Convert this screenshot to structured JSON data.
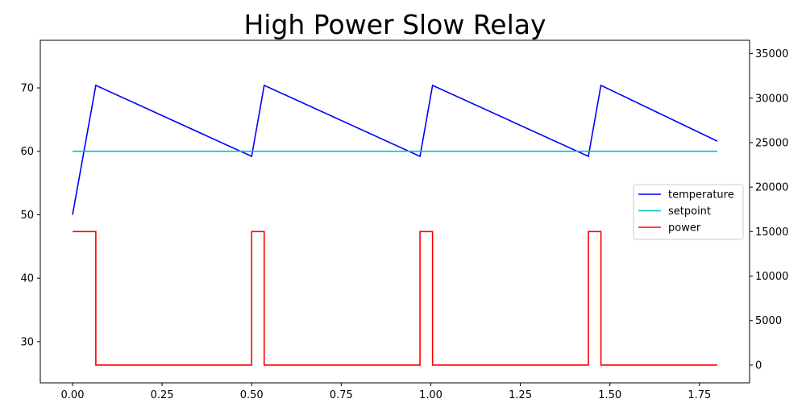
{
  "chart_data": {
    "type": "line",
    "title": "High Power Slow Relay",
    "xlabel": "",
    "ylabel": "",
    "ylabel_right": "",
    "xlim": [
      -0.09,
      1.89
    ],
    "ylim_left": [
      23.5,
      77.5
    ],
    "ylim_right": [
      -2000,
      36500
    ],
    "x_ticks": [
      0.0,
      0.25,
      0.5,
      0.75,
      1.0,
      1.25,
      1.5,
      1.75
    ],
    "x_tick_labels": [
      "0.00",
      "0.25",
      "0.50",
      "0.75",
      "1.00",
      "1.25",
      "1.50",
      "1.75"
    ],
    "y_left_ticks": [
      30,
      40,
      50,
      60,
      70
    ],
    "y_left_tick_labels": [
      "30",
      "40",
      "50",
      "60",
      "70"
    ],
    "y_right_ticks": [
      0,
      5000,
      10000,
      15000,
      20000,
      25000,
      30000,
      35000
    ],
    "y_right_tick_labels": [
      "0",
      "5000",
      "10000",
      "15000",
      "20000",
      "25000",
      "30000",
      "35000"
    ],
    "grid": false,
    "legend": "center-right",
    "series": [
      {
        "name": "temperature",
        "axis": "left",
        "color": "#0000ff",
        "x": [
          0.0,
          0.065,
          0.5,
          0.535,
          0.97,
          1.005,
          1.44,
          1.475,
          1.8
        ],
        "y": [
          50.0,
          70.4,
          59.2,
          70.4,
          59.2,
          70.4,
          59.2,
          70.4,
          61.6
        ]
      },
      {
        "name": "setpoint",
        "axis": "left",
        "color": "#00bfbf",
        "x": [
          0.0,
          1.8
        ],
        "y": [
          60.0,
          60.0
        ]
      },
      {
        "name": "power",
        "axis": "right",
        "color": "#ff0000",
        "step": true,
        "x": [
          0.0,
          0.065,
          0.065,
          0.5,
          0.5,
          0.535,
          0.535,
          0.97,
          0.97,
          1.005,
          1.005,
          1.44,
          1.44,
          1.475,
          1.475,
          1.8
        ],
        "y": [
          15000,
          15000,
          0,
          0,
          15000,
          15000,
          0,
          0,
          15000,
          15000,
          0,
          0,
          15000,
          15000,
          0,
          0
        ]
      }
    ]
  }
}
